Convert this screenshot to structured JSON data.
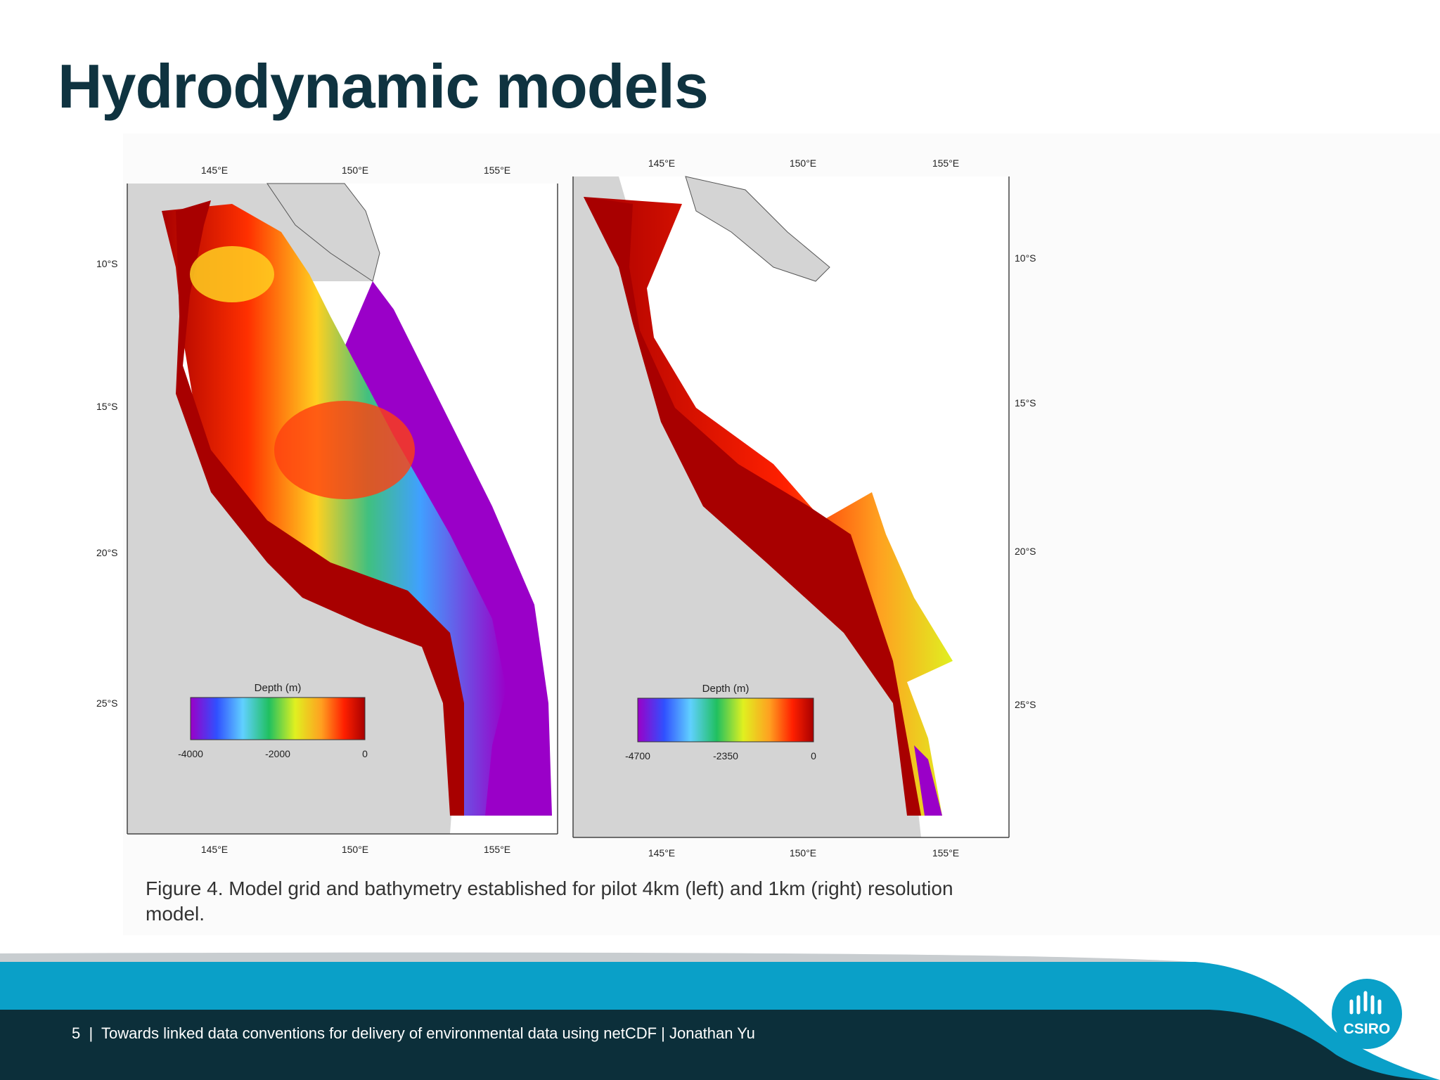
{
  "slide": {
    "title": "Hydrodynamic models",
    "page_number": "5",
    "footer_text": "Towards linked data conventions for delivery of environmental data using netCDF | Jonathan Yu",
    "logo_text": "CSIRO"
  },
  "figure": {
    "caption": "Figure 4. Model grid and bathymetry established for pilot 4km (left) and 1km (right) resolution model.",
    "left_map": {
      "top_lon_labels": [
        "145°E",
        "150°E",
        "155°E"
      ],
      "bottom_lon_labels": [
        "145°E",
        "150°E",
        "155°E"
      ],
      "lat_labels": [
        "10°S",
        "15°S",
        "20°S",
        "25°S"
      ],
      "colorbar": {
        "title": "Depth (m)",
        "labels": [
          "-4000",
          "-2000",
          "0"
        ]
      }
    },
    "right_map": {
      "top_lon_labels": [
        "145°E",
        "150°E",
        "155°E"
      ],
      "bottom_lon_labels": [
        "145°E",
        "150°E",
        "155°E"
      ],
      "lat_labels": [
        "10°S",
        "15°S",
        "20°S",
        "25°S"
      ],
      "colorbar": {
        "title": "Depth (m)",
        "labels": [
          "-4700",
          "-2350",
          "0"
        ]
      }
    }
  },
  "colors": {
    "title": "#0f3340",
    "footer_dark": "#0c2f3a",
    "footer_band": "#0aa0c8",
    "land": "#d4d4d4",
    "deep": "#9a00c8",
    "shallow": "#a80000"
  }
}
